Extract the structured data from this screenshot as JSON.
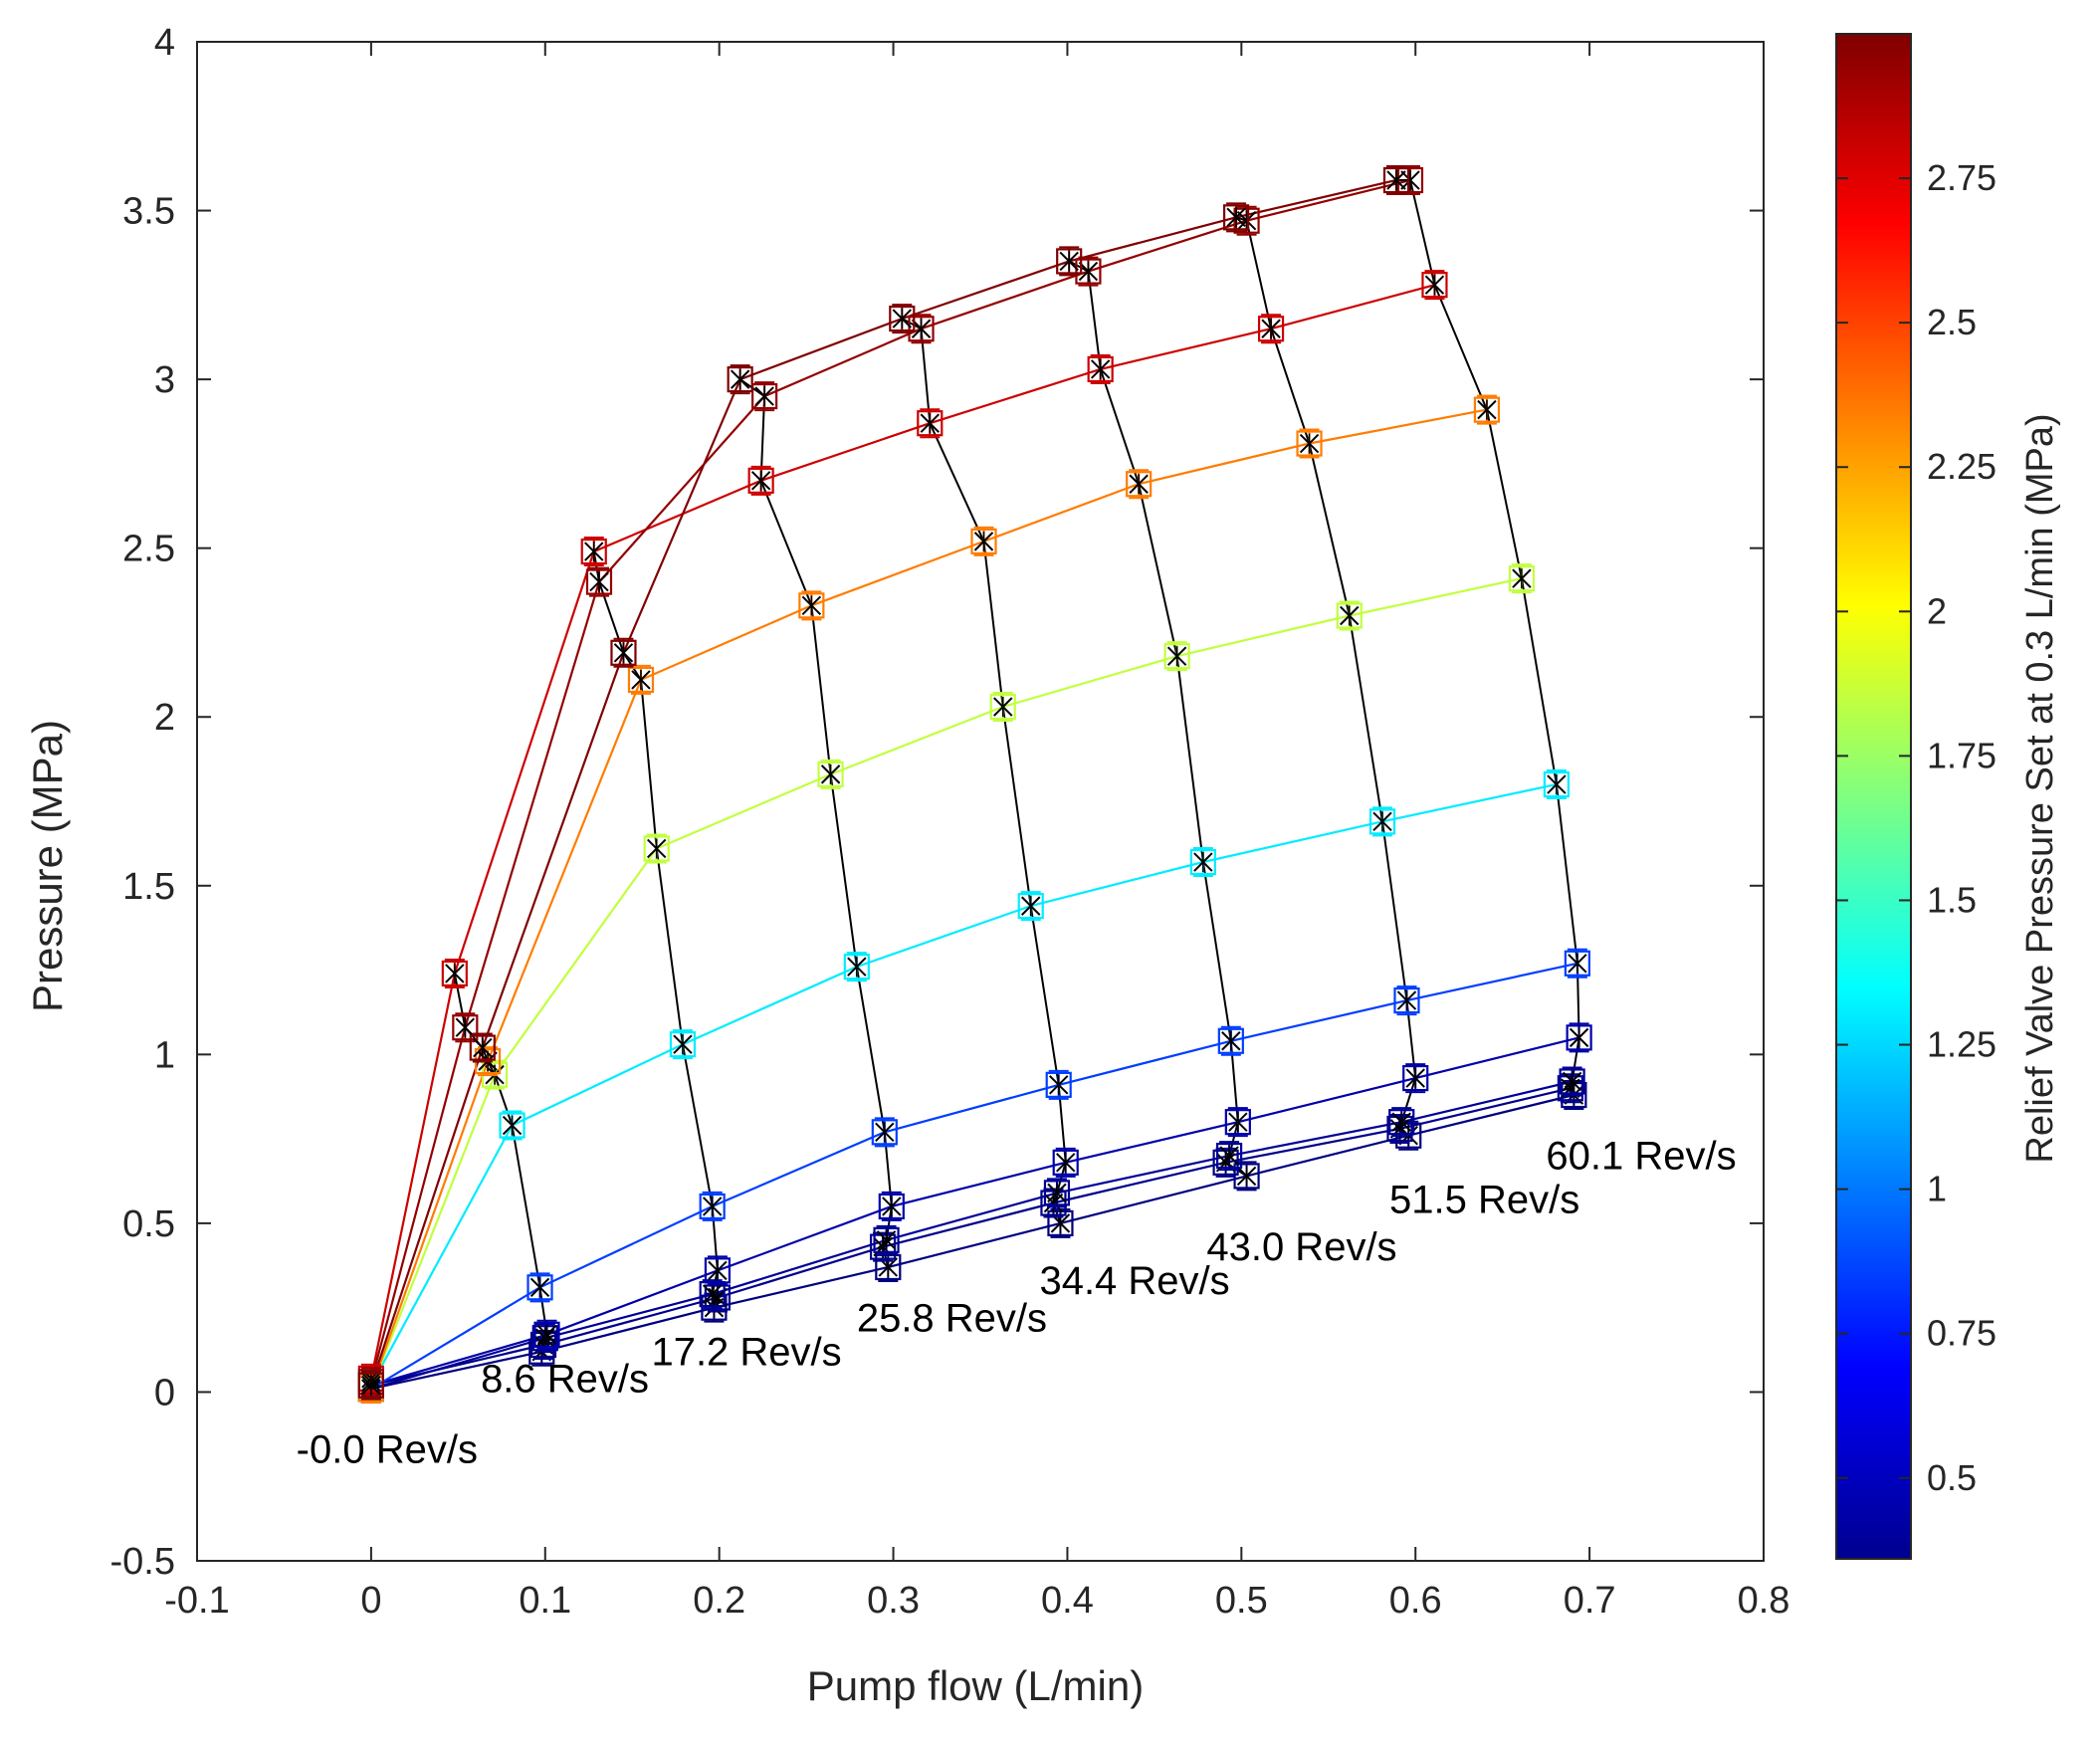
{
  "chart_data": {
    "type": "line",
    "xlabel": "Pump flow (L/min)",
    "ylabel": "Pressure (MPa)",
    "xlim": [
      -0.1,
      0.8
    ],
    "ylim": [
      -0.5,
      4
    ],
    "xticks": [
      -0.1,
      0,
      0.1,
      0.2,
      0.3,
      0.4,
      0.5,
      0.6,
      0.7,
      0.8
    ],
    "xtick_labels": [
      "-0.1",
      "0",
      "0.1",
      "0.2",
      "0.3",
      "0.4",
      "0.5",
      "0.6",
      "0.7",
      "0.8"
    ],
    "yticks": [
      -0.5,
      0,
      0.5,
      1,
      1.5,
      2,
      2.5,
      3,
      3.5,
      4
    ],
    "ytick_labels": [
      "-0.5",
      "0",
      "0.5",
      "1",
      "1.5",
      "2",
      "2.5",
      "3",
      "3.5",
      "4"
    ],
    "speeds_rev_per_s": [
      "-0.0",
      "8.6",
      "17.2",
      "25.8",
      "34.4",
      "43.0",
      "51.5",
      "60.1"
    ],
    "speed_labels": [
      {
        "text": "-0.0 Rev/s",
        "x": -0.043,
        "y": -0.21
      },
      {
        "text": "8.6 Rev/s",
        "x": 0.063,
        "y": 0.0
      },
      {
        "text": "17.2 Rev/s",
        "x": 0.161,
        "y": 0.08
      },
      {
        "text": "25.8 Rev/s",
        "x": 0.279,
        "y": 0.18
      },
      {
        "text": "34.4 Rev/s",
        "x": 0.384,
        "y": 0.29
      },
      {
        "text": "43.0 Rev/s",
        "x": 0.48,
        "y": 0.39
      },
      {
        "text": "51.5 Rev/s",
        "x": 0.585,
        "y": 0.53
      },
      {
        "text": "60.1 Rev/s",
        "x": 0.675,
        "y": 0.66
      }
    ],
    "series": [
      {
        "name": "0.36 MPa",
        "setting": 0.36,
        "points": [
          [
            0,
            0.01
          ],
          [
            0.098,
            0.12
          ],
          [
            0.197,
            0.25
          ],
          [
            0.297,
            0.37
          ],
          [
            0.396,
            0.5
          ],
          [
            0.503,
            0.64
          ],
          [
            0.596,
            0.76
          ],
          [
            0.691,
            0.88
          ]
        ]
      },
      {
        "name": "0.39 MPa",
        "setting": 0.39,
        "points": [
          [
            0,
            0.02
          ],
          [
            0.099,
            0.14
          ],
          [
            0.199,
            0.28
          ],
          [
            0.294,
            0.43
          ],
          [
            0.392,
            0.56
          ],
          [
            0.491,
            0.68
          ],
          [
            0.591,
            0.78
          ],
          [
            0.689,
            0.9
          ]
        ]
      },
      {
        "name": "0.42 MPa",
        "setting": 0.42,
        "points": [
          [
            0,
            0.01
          ],
          [
            0.1,
            0.16
          ],
          [
            0.196,
            0.29
          ],
          [
            0.296,
            0.45
          ],
          [
            0.394,
            0.59
          ],
          [
            0.493,
            0.7
          ],
          [
            0.592,
            0.8
          ],
          [
            0.69,
            0.92
          ]
        ]
      },
      {
        "name": "0.47 MPa",
        "setting": 0.47,
        "points": [
          [
            0,
            0.02
          ],
          [
            0.101,
            0.17
          ],
          [
            0.199,
            0.36
          ],
          [
            0.299,
            0.55
          ],
          [
            0.399,
            0.68
          ],
          [
            0.498,
            0.8
          ],
          [
            0.6,
            0.93
          ],
          [
            0.694,
            1.05
          ]
        ]
      },
      {
        "name": "0.85 MPa",
        "setting": 0.85,
        "points": [
          [
            0,
            0.01
          ],
          [
            0.097,
            0.31
          ],
          [
            0.196,
            0.55
          ],
          [
            0.295,
            0.77
          ],
          [
            0.395,
            0.91
          ],
          [
            0.494,
            1.04
          ],
          [
            0.595,
            1.16
          ],
          [
            0.693,
            1.27
          ]
        ]
      },
      {
        "name": "1.30 MPa",
        "setting": 1.3,
        "points": [
          [
            0,
            0.02
          ],
          [
            0.081,
            0.79
          ],
          [
            0.179,
            1.03
          ],
          [
            0.279,
            1.26
          ],
          [
            0.379,
            1.44
          ],
          [
            0.478,
            1.57
          ],
          [
            0.581,
            1.69
          ],
          [
            0.681,
            1.8
          ]
        ]
      },
      {
        "name": "1.85 MPa",
        "setting": 1.85,
        "points": [
          [
            0,
            0.01
          ],
          [
            0.071,
            0.94
          ],
          [
            0.164,
            1.61
          ],
          [
            0.264,
            1.83
          ],
          [
            0.363,
            2.03
          ],
          [
            0.463,
            2.18
          ],
          [
            0.562,
            2.3
          ],
          [
            0.661,
            2.41
          ]
        ]
      },
      {
        "name": "2.35 MPa",
        "setting": 2.35,
        "points": [
          [
            0,
            0.01
          ],
          [
            0.067,
            0.98
          ],
          [
            0.155,
            2.11
          ],
          [
            0.253,
            2.33
          ],
          [
            0.352,
            2.52
          ],
          [
            0.441,
            2.69
          ],
          [
            0.539,
            2.81
          ],
          [
            0.641,
            2.91
          ]
        ]
      },
      {
        "name": "2.80 MPa",
        "setting": 2.8,
        "points": [
          [
            0,
            0.04
          ],
          [
            0.048,
            1.24
          ],
          [
            0.128,
            2.49
          ],
          [
            0.224,
            2.7
          ],
          [
            0.321,
            2.87
          ],
          [
            0.419,
            3.03
          ],
          [
            0.517,
            3.15
          ],
          [
            0.611,
            3.28
          ]
        ]
      },
      {
        "name": "2.95 MPa",
        "setting": 2.95,
        "points": [
          [
            0,
            0.03
          ],
          [
            0.054,
            1.08
          ],
          [
            0.131,
            2.4
          ],
          [
            0.226,
            2.95
          ],
          [
            0.316,
            3.15
          ],
          [
            0.412,
            3.32
          ],
          [
            0.503,
            3.47
          ],
          [
            0.597,
            3.59
          ]
        ]
      },
      {
        "name": "3.00 MPa",
        "setting": 3.0,
        "points": [
          [
            0,
            0.02
          ],
          [
            0.064,
            1.02
          ],
          [
            0.145,
            2.19
          ],
          [
            0.212,
            3.0
          ],
          [
            0.305,
            3.18
          ],
          [
            0.401,
            3.35
          ],
          [
            0.497,
            3.48
          ],
          [
            0.589,
            3.59
          ]
        ]
      }
    ],
    "colorbar": {
      "label": "Relief Valve Pressure Set at 0.3 L/min (MPa)",
      "colormap": "jet",
      "range": [
        0.36,
        3.0
      ],
      "ticks": [
        0.5,
        0.75,
        1,
        1.25,
        1.5,
        1.75,
        2,
        2.25,
        2.5,
        2.75
      ],
      "tick_labels": [
        "0.5",
        "0.75",
        "1",
        "1.25",
        "1.5",
        "1.75",
        "2",
        "2.25",
        "2.5",
        "2.75"
      ]
    },
    "speed_line_color": "#000000",
    "marker_style": "square with x/star and error bars"
  }
}
